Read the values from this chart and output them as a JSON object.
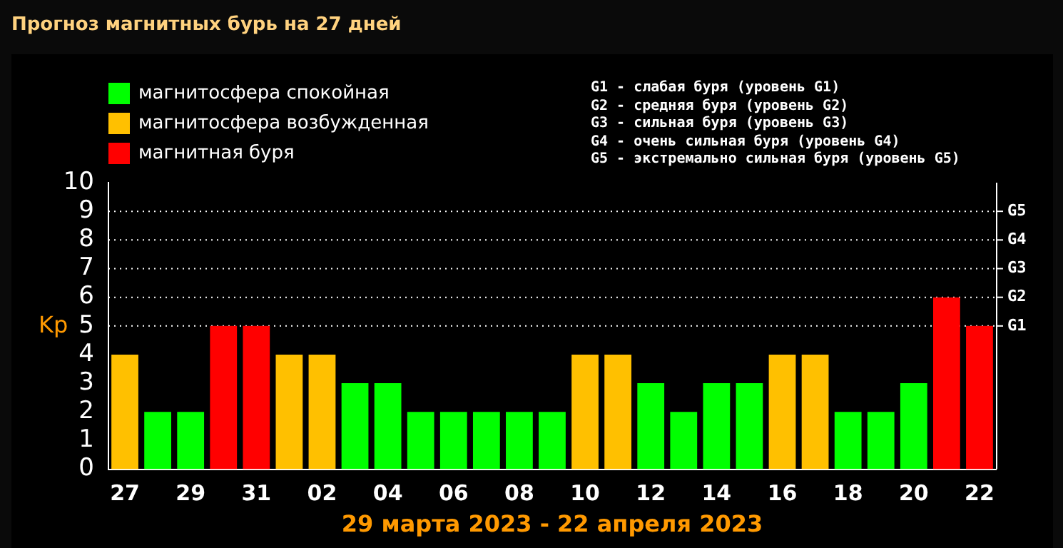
{
  "chart_data": {
    "type": "bar",
    "title": "Прогноз магнитных бурь на 27 дней",
    "xlabel": "29 марта 2023 - 22 апреля 2023",
    "ylabel": "Kp",
    "categories": [
      "27",
      null,
      "29",
      null,
      "31",
      null,
      "02",
      null,
      "04",
      null,
      "06",
      null,
      "08",
      null,
      "10",
      null,
      "12",
      null,
      "14",
      null,
      "16",
      null,
      "18",
      null,
      "20",
      null,
      "22"
    ],
    "stacked": true,
    "legend": "top left",
    "series": [
      {
        "name": "магнитосфера спокойная",
        "color": "#00ff00",
        "values": [
          null,
          2,
          2,
          null,
          null,
          null,
          null,
          3,
          3,
          2,
          2,
          2,
          2,
          2,
          null,
          null,
          3,
          2,
          3,
          3,
          null,
          null,
          2,
          2,
          3,
          null,
          null
        ]
      },
      {
        "name": "магнитосфера возбужденная",
        "color": "#ffc000",
        "values": [
          4,
          null,
          null,
          null,
          null,
          4,
          4,
          null,
          null,
          null,
          null,
          null,
          null,
          null,
          4,
          4,
          null,
          null,
          null,
          null,
          4,
          4,
          null,
          null,
          null,
          null,
          null
        ]
      },
      {
        "name": "магнитная буря",
        "color": "#ff0000",
        "values": [
          null,
          null,
          null,
          5,
          5,
          null,
          null,
          null,
          null,
          null,
          null,
          null,
          null,
          null,
          null,
          null,
          null,
          null,
          null,
          null,
          null,
          null,
          null,
          null,
          null,
          6,
          5
        ]
      }
    ],
    "ylim": [
      0,
      10
    ],
    "yticks": [
      0,
      1,
      2,
      3,
      4,
      5,
      6,
      7,
      8,
      9,
      10
    ],
    "ref_lines": [
      {
        "axis": "y",
        "value": 5,
        "label": "G1",
        "color": "#ffffff",
        "line_style": "dotted"
      },
      {
        "axis": "y",
        "value": 6,
        "label": "G2",
        "color": "#ffffff",
        "line_style": "dotted"
      },
      {
        "axis": "y",
        "value": 7,
        "label": "G3",
        "color": "#ffffff",
        "line_style": "dotted"
      },
      {
        "axis": "y",
        "value": 8,
        "label": "G4",
        "color": "#ffffff",
        "line_style": "dotted"
      },
      {
        "axis": "y",
        "value": 9,
        "label": "G5",
        "color": "#ffffff",
        "line_style": "dotted"
      }
    ],
    "annotations": [
      "G1 - слабая буря (уровень G1)",
      "G2 - средняя буря (уровень G2)",
      "G3 - сильная буря (уровень G3)",
      "G4 - очень сильная буря (уровень G4)",
      "G5 - экстремально сильная буря (уровень G5)"
    ]
  }
}
